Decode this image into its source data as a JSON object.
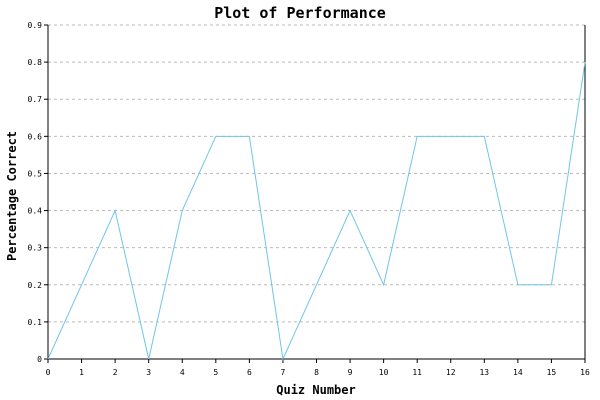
{
  "chart_data": {
    "type": "line",
    "title": "Plot of Performance",
    "xlabel": "Quiz Number",
    "ylabel": "Percentage Correct",
    "x": [
      0,
      1,
      2,
      3,
      4,
      5,
      6,
      7,
      8,
      9,
      10,
      11,
      12,
      13,
      14,
      15,
      16
    ],
    "series": [
      {
        "values": [
          0,
          0.2,
          0.4,
          0,
          0.4,
          0.6,
          0.6,
          0,
          0.2,
          0.4,
          0.2,
          0.6,
          0.6,
          0.6,
          0.2,
          0.2,
          0.8
        ],
        "color": "#6ec6e8"
      }
    ],
    "xlim": [
      0,
      16
    ],
    "ylim": [
      0,
      0.9
    ],
    "xticks": [
      "0",
      "1",
      "2",
      "3",
      "4",
      "5",
      "6",
      "7",
      "8",
      "9",
      "10",
      "11",
      "12",
      "13",
      "14",
      "15",
      "16"
    ],
    "yticks": [
      "0",
      "0.1",
      "0.2",
      "0.3",
      "0.4",
      "0.5",
      "0.6",
      "0.7",
      "0.8",
      "0.9"
    ],
    "grid": "horizontal dashed",
    "grid_color": "#bbbbbb",
    "axis_color": "#000000",
    "background": "#ffffff"
  }
}
